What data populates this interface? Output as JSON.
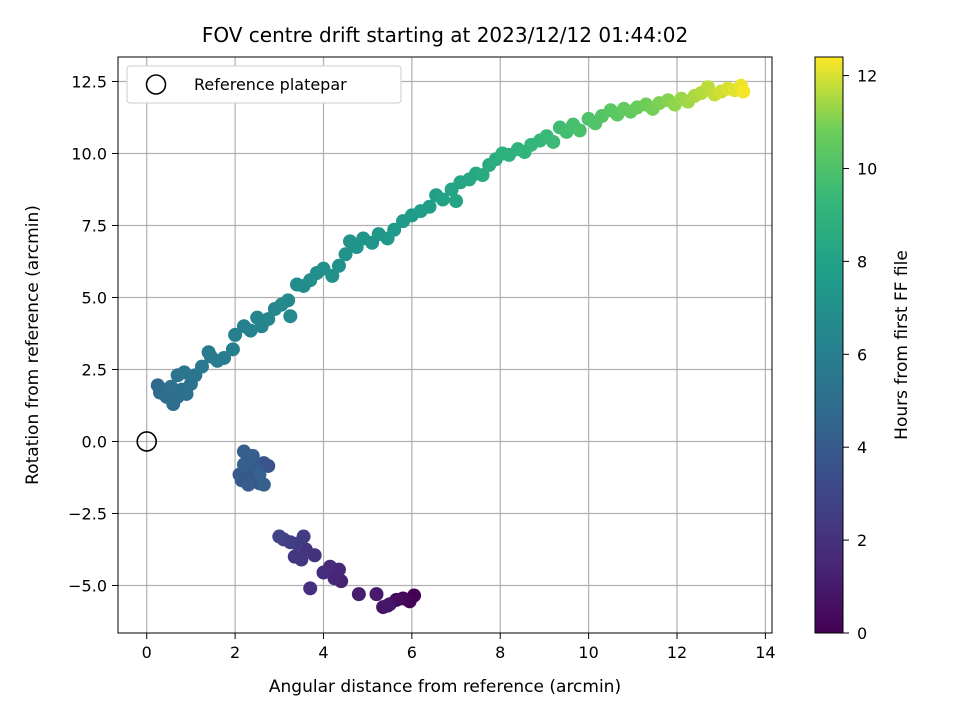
{
  "chart_data": {
    "type": "scatter",
    "title": "FOV centre drift starting at 2023/12/12 01:44:02",
    "xlabel": "Angular distance from reference (arcmin)",
    "ylabel": "Rotation from reference (arcmin)",
    "xlim": [
      -0.65,
      14.15
    ],
    "ylim": [
      -6.65,
      13.35
    ],
    "xticks": [
      0,
      2,
      4,
      6,
      8,
      10,
      12,
      14
    ],
    "xtick_labels": [
      "0",
      "2",
      "4",
      "6",
      "8",
      "10",
      "12",
      "14"
    ],
    "yticks": [
      -5.0,
      -2.5,
      0.0,
      2.5,
      5.0,
      7.5,
      10.0,
      12.5
    ],
    "ytick_labels": [
      "−5.0",
      "−2.5",
      "0.0",
      "2.5",
      "5.0",
      "7.5",
      "10.0",
      "12.5"
    ],
    "grid": true,
    "legend": {
      "label": "Reference platepar",
      "position": "upper-left"
    },
    "reference_point": {
      "x": 0.0,
      "y": 0.0
    },
    "colorbar": {
      "label": "Hours from first FF file",
      "range": [
        0,
        12.4
      ],
      "ticks": [
        0,
        2,
        4,
        6,
        8,
        10,
        12
      ],
      "tick_labels": [
        "0",
        "2",
        "4",
        "6",
        "8",
        "10",
        "12"
      ],
      "colormap": "viridis"
    },
    "series": [
      {
        "color_by": "hours",
        "points": [
          [
            6.05,
            -5.35,
            0.05
          ],
          [
            5.95,
            -5.55,
            0.15
          ],
          [
            5.8,
            -5.45,
            0.3
          ],
          [
            5.65,
            -5.5,
            0.45
          ],
          [
            5.5,
            -5.65,
            0.6
          ],
          [
            5.35,
            -5.75,
            0.75
          ],
          [
            5.45,
            -5.7,
            0.85
          ],
          [
            5.2,
            -5.3,
            1.0
          ],
          [
            4.8,
            -5.3,
            1.15
          ],
          [
            4.4,
            -4.85,
            1.3
          ],
          [
            4.25,
            -4.75,
            1.45
          ],
          [
            4.35,
            -4.45,
            1.55
          ],
          [
            4.15,
            -4.35,
            1.7
          ],
          [
            4.0,
            -4.55,
            1.8
          ],
          [
            3.7,
            -5.1,
            1.9
          ],
          [
            3.8,
            -3.95,
            2.0
          ],
          [
            3.6,
            -3.75,
            2.1
          ],
          [
            3.5,
            -4.1,
            2.2
          ],
          [
            3.35,
            -4.0,
            2.3
          ],
          [
            3.4,
            -3.55,
            2.4
          ],
          [
            3.55,
            -3.3,
            2.5
          ],
          [
            3.25,
            -3.5,
            2.6
          ],
          [
            3.1,
            -3.4,
            2.7
          ],
          [
            3.0,
            -3.3,
            2.8
          ],
          [
            2.75,
            -0.85,
            3.6
          ],
          [
            2.65,
            -0.75,
            3.65
          ],
          [
            2.45,
            -1.3,
            3.7
          ],
          [
            2.55,
            -1.45,
            3.75
          ],
          [
            2.35,
            -1.05,
            3.8
          ],
          [
            2.25,
            -1.2,
            3.85
          ],
          [
            2.1,
            -1.15,
            3.9
          ],
          [
            2.15,
            -1.35,
            3.95
          ],
          [
            2.4,
            -0.8,
            4.0
          ],
          [
            2.5,
            -1.0,
            4.05
          ],
          [
            2.3,
            -1.5,
            4.1
          ],
          [
            2.2,
            -0.35,
            4.15
          ],
          [
            2.4,
            -0.5,
            4.2
          ],
          [
            2.2,
            -0.8,
            4.25
          ],
          [
            2.55,
            -1.15,
            4.3
          ],
          [
            2.65,
            -1.5,
            4.35
          ],
          [
            0.25,
            1.95,
            4.7
          ],
          [
            0.35,
            1.8,
            4.8
          ],
          [
            0.45,
            1.55,
            4.9
          ],
          [
            0.3,
            1.7,
            4.95
          ],
          [
            0.6,
            1.3,
            5.0
          ],
          [
            0.7,
            1.55,
            5.05
          ],
          [
            0.55,
            1.9,
            5.1
          ],
          [
            0.8,
            1.8,
            5.15
          ],
          [
            0.9,
            1.65,
            5.2
          ],
          [
            1.0,
            2.0,
            5.3
          ],
          [
            0.7,
            2.3,
            5.35
          ],
          [
            0.85,
            2.4,
            5.4
          ],
          [
            1.1,
            2.3,
            5.5
          ],
          [
            1.25,
            2.6,
            5.6
          ],
          [
            1.45,
            2.95,
            5.7
          ],
          [
            1.4,
            3.1,
            5.75
          ],
          [
            1.6,
            2.8,
            5.8
          ],
          [
            1.75,
            2.9,
            5.9
          ],
          [
            1.95,
            3.2,
            6.0
          ],
          [
            2.0,
            3.7,
            6.1
          ],
          [
            2.2,
            4.0,
            6.15
          ],
          [
            2.35,
            3.85,
            6.2
          ],
          [
            2.5,
            4.3,
            6.3
          ],
          [
            2.6,
            4.0,
            6.35
          ],
          [
            2.75,
            4.25,
            6.4
          ],
          [
            2.9,
            4.6,
            6.5
          ],
          [
            3.05,
            4.75,
            6.55
          ],
          [
            3.2,
            4.9,
            6.6
          ],
          [
            3.25,
            4.35,
            6.65
          ],
          [
            3.4,
            5.45,
            6.7
          ],
          [
            3.55,
            5.4,
            6.8
          ],
          [
            3.7,
            5.6,
            6.85
          ],
          [
            3.85,
            5.85,
            6.9
          ],
          [
            4.0,
            6.0,
            6.95
          ],
          [
            4.2,
            5.75,
            7.0
          ],
          [
            4.35,
            6.1,
            7.05
          ],
          [
            4.5,
            6.5,
            7.1
          ],
          [
            4.6,
            6.95,
            7.15
          ],
          [
            4.75,
            6.75,
            7.2
          ],
          [
            4.9,
            7.05,
            7.25
          ],
          [
            5.1,
            6.9,
            7.3
          ],
          [
            5.25,
            7.2,
            7.35
          ],
          [
            5.45,
            7.05,
            7.4
          ],
          [
            5.6,
            7.35,
            7.5
          ],
          [
            5.8,
            7.65,
            7.55
          ],
          [
            6.0,
            7.85,
            7.6
          ],
          [
            6.2,
            8.0,
            7.7
          ],
          [
            6.4,
            8.15,
            7.8
          ],
          [
            6.55,
            8.55,
            7.9
          ],
          [
            6.7,
            8.4,
            8.0
          ],
          [
            6.9,
            8.75,
            8.1
          ],
          [
            7.0,
            8.35,
            8.15
          ],
          [
            7.1,
            9.0,
            8.2
          ],
          [
            7.3,
            9.1,
            8.3
          ],
          [
            7.45,
            9.3,
            8.4
          ],
          [
            7.6,
            9.25,
            8.5
          ],
          [
            7.75,
            9.6,
            8.6
          ],
          [
            7.9,
            9.8,
            8.7
          ],
          [
            8.05,
            10.0,
            8.8
          ],
          [
            8.2,
            9.95,
            8.9
          ],
          [
            8.4,
            10.15,
            9.0
          ],
          [
            8.55,
            10.05,
            9.1
          ],
          [
            8.7,
            10.3,
            9.2
          ],
          [
            8.9,
            10.45,
            9.3
          ],
          [
            9.05,
            10.6,
            9.4
          ],
          [
            9.2,
            10.4,
            9.5
          ],
          [
            9.35,
            10.9,
            9.6
          ],
          [
            9.5,
            10.75,
            9.7
          ],
          [
            9.65,
            11.0,
            9.8
          ],
          [
            9.8,
            10.8,
            9.9
          ],
          [
            10.0,
            11.2,
            10.0
          ],
          [
            10.15,
            11.05,
            10.1
          ],
          [
            10.3,
            11.3,
            10.2
          ],
          [
            10.5,
            11.5,
            10.3
          ],
          [
            10.65,
            11.35,
            10.4
          ],
          [
            10.8,
            11.55,
            10.5
          ],
          [
            10.95,
            11.45,
            10.6
          ],
          [
            11.1,
            11.6,
            10.7
          ],
          [
            11.3,
            11.7,
            10.8
          ],
          [
            11.45,
            11.55,
            10.9
          ],
          [
            11.6,
            11.75,
            11.0
          ],
          [
            11.8,
            11.85,
            11.1
          ],
          [
            11.95,
            11.7,
            11.2
          ],
          [
            12.1,
            11.9,
            11.3
          ],
          [
            12.25,
            11.8,
            11.4
          ],
          [
            12.4,
            12.0,
            11.5
          ],
          [
            12.55,
            12.1,
            11.6
          ],
          [
            12.7,
            12.3,
            11.7
          ],
          [
            12.85,
            12.05,
            11.8
          ],
          [
            13.0,
            12.15,
            11.9
          ],
          [
            13.15,
            12.25,
            12.0
          ],
          [
            13.3,
            12.2,
            12.1
          ],
          [
            13.45,
            12.35,
            12.2
          ],
          [
            13.5,
            12.15,
            12.3
          ]
        ]
      }
    ]
  }
}
